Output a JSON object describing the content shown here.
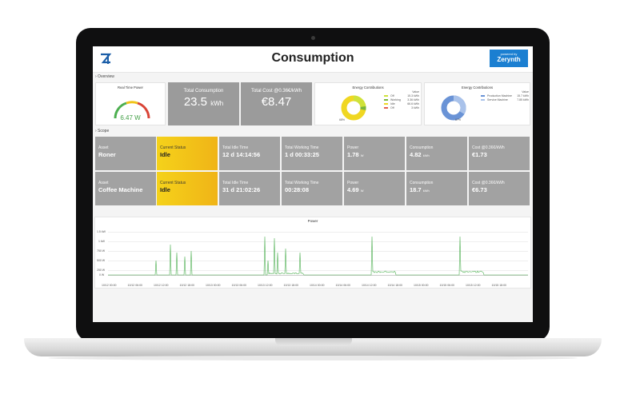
{
  "header": {
    "title_bold": "Cons",
    "title_rest": "umption",
    "badge_small": "powered by",
    "badge_brand": "Zerynth"
  },
  "sections": {
    "overview": "› Overview",
    "scope": "› Scope"
  },
  "realtime": {
    "title": "Real Time Power",
    "value": "6.47 W"
  },
  "total_consumption": {
    "label": "Total Consumption",
    "value": "23.5",
    "unit": "kWh"
  },
  "total_cost": {
    "label": "Total Cost @0.36€/kWh",
    "value": "€8.47"
  },
  "energy1": {
    "title": "Energy Contributions",
    "head": "Value",
    "rows": [
      {
        "name": "Off",
        "value": "15.3 kWh",
        "color": "#cfe23a"
      },
      {
        "name": "Working",
        "value": "3.36 kWh",
        "color": "#79b53b"
      },
      {
        "name": "Idle",
        "value": "66.6 kWh",
        "color": "#f0d722"
      },
      {
        "name": "Off",
        "value": "3 kWh",
        "color": "#e35d4f"
      }
    ],
    "pct": "68%"
  },
  "energy2": {
    "title": "Energy Contributions",
    "head": "Value",
    "rows": [
      {
        "name": "Production Machine",
        "value": "15.7 kWh",
        "color": "#6a93d6"
      },
      {
        "name": "Service Machine",
        "value": "7.85 kWh",
        "color": "#a9c2ea"
      }
    ],
    "pct": "67%"
  },
  "assets": [
    {
      "asset": "Roner",
      "status": "Idle",
      "idle": "12 d 14:14:56",
      "working": "1 d 00:33:25",
      "power": "1.78",
      "power_u": "W",
      "cons": "4.82",
      "cons_u": "kWh",
      "cost": "€1.73"
    },
    {
      "asset": "Coffee Machine",
      "status": "Idle",
      "idle": "31 d 21:02:26",
      "working": "00:28:08",
      "power": "4.69",
      "power_u": "W",
      "cons": "18.7",
      "cons_u": "kWh",
      "cost": "€6.73"
    }
  ],
  "labels": {
    "asset": "Asset",
    "status": "Current Status",
    "idle": "Total Idle Time",
    "working": "Total Working Time",
    "power": "Power",
    "cons": "Consumption",
    "cost": "Cost @0.36€/kWh"
  },
  "power_chart": {
    "title": "Power",
    "y_ticks": [
      "1.5 kW",
      "1 kW",
      "750 W",
      "500 W",
      "250 W",
      "0 W"
    ],
    "x_ticks": [
      "10/12 00:00",
      "10/12 06:00",
      "10/12 12:00",
      "10/12 18:00",
      "10/13 00:00",
      "10/13 06:00",
      "10/13 12:00",
      "10/13 18:00",
      "10/14 00:00",
      "10/14 06:00",
      "10/14 12:00",
      "10/14 18:00",
      "10/15 00:00",
      "10/15 06:00",
      "10/15 12:00",
      "10/15 18:00"
    ]
  },
  "colors": {
    "line": "#4caf50",
    "accent": "#1b7fd1"
  }
}
